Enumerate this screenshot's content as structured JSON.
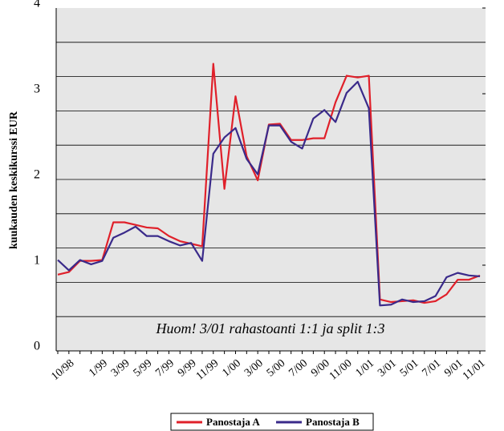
{
  "chart_data": {
    "type": "line",
    "y_label": "kuukauden keskikurssi EUR",
    "annotation": "Huom! 3/01 rahastoanti 1:1 ja split 1:3",
    "categories": [
      null,
      "10/98",
      null,
      null,
      "1/99",
      null,
      "3/99",
      null,
      "5/99",
      null,
      "7/99",
      null,
      "9/99",
      null,
      "11/99",
      null,
      "1/00",
      null,
      "3/00",
      null,
      "5/00",
      null,
      "7/00",
      null,
      "9/00",
      null,
      "11/00",
      null,
      "1/01",
      null,
      "3/01",
      null,
      "5/01",
      null,
      "7/01",
      null,
      "9/01",
      null,
      "11/01"
    ],
    "series": [
      {
        "name": "Panostaja A",
        "color": "#e0202a",
        "values": [
          0.89,
          0.92,
          1.05,
          1.05,
          1.06,
          1.5,
          1.5,
          1.47,
          1.44,
          1.43,
          1.34,
          1.28,
          1.25,
          1.22,
          3.35,
          1.89,
          2.97,
          2.27,
          1.99,
          2.64,
          2.65,
          2.46,
          2.46,
          2.48,
          2.48,
          2.9,
          3.21,
          3.19,
          3.21,
          0.6,
          0.57,
          0.58,
          0.59,
          0.56,
          0.58,
          0.66,
          0.83,
          0.83,
          0.88
        ]
      },
      {
        "name": "Panostaja B",
        "color": "#3a2a8a",
        "values": [
          1.06,
          0.94,
          1.06,
          1.01,
          1.05,
          1.32,
          1.38,
          1.45,
          1.34,
          1.34,
          1.28,
          1.23,
          1.26,
          1.05,
          2.3,
          2.49,
          2.6,
          2.24,
          2.06,
          2.63,
          2.63,
          2.44,
          2.36,
          2.71,
          2.81,
          2.67,
          3.01,
          3.14,
          2.83,
          0.53,
          0.54,
          0.6,
          0.57,
          0.58,
          0.64,
          0.86,
          0.91,
          0.88,
          0.87
        ]
      }
    ],
    "ylim": [
      0,
      4
    ],
    "yticks": [
      0,
      1,
      2,
      3,
      4
    ],
    "ygrid": [
      0.4,
      0.8,
      1.2,
      1.6,
      2.0,
      2.4,
      2.8,
      3.2,
      3.6
    ],
    "legend": "bottom"
  }
}
